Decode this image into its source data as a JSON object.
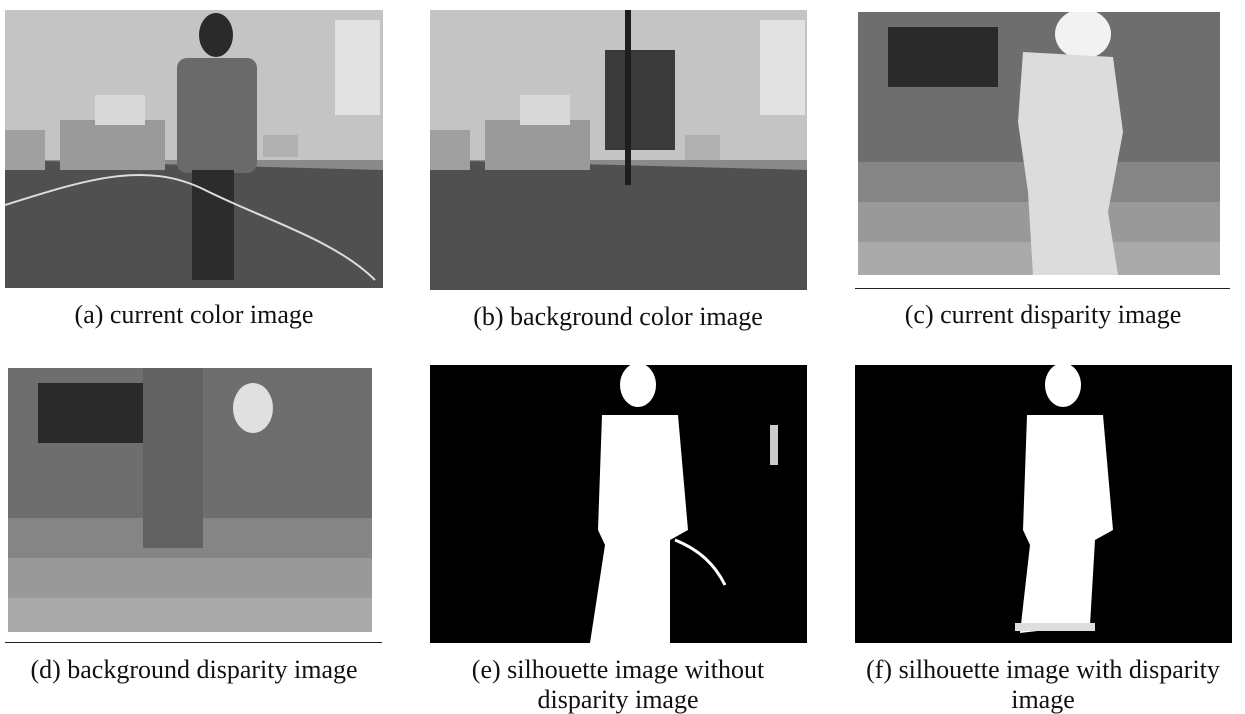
{
  "panels": [
    {
      "caption": [
        "(a) current color image"
      ]
    },
    {
      "caption": [
        "(b) background color image"
      ]
    },
    {
      "caption": [
        "(c) current disparity image"
      ]
    },
    {
      "caption": [
        "(d) background disparity image"
      ]
    },
    {
      "caption": [
        "(e) silhouette image without",
        "disparity image"
      ]
    },
    {
      "caption": [
        "(f) silhouette image with disparity",
        "image"
      ]
    }
  ]
}
